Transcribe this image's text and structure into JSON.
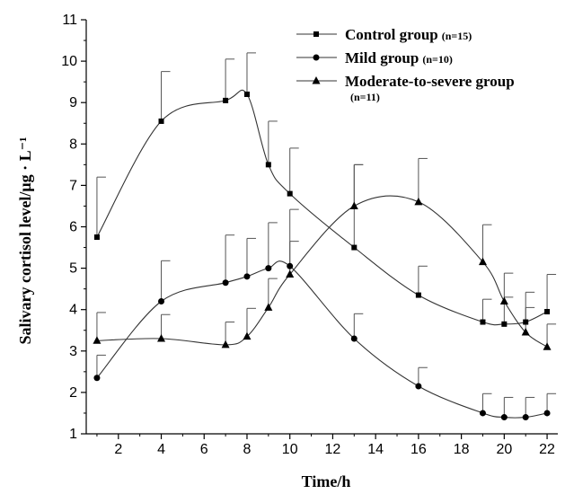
{
  "chart_data": {
    "type": "line",
    "title": "",
    "xlabel": "Time/h",
    "ylabel": "Salivary cortisol level/μg · L⁻¹",
    "xlim": [
      0.5,
      22.5
    ],
    "ylim": [
      1,
      11
    ],
    "x_ticks": [
      2,
      4,
      6,
      8,
      10,
      12,
      14,
      16,
      18,
      20,
      22
    ],
    "y_ticks": [
      1,
      2,
      3,
      4,
      5,
      6,
      7,
      8,
      9,
      10,
      11
    ],
    "grid": false,
    "legend_position": "top-right",
    "x": [
      1,
      4,
      7,
      8,
      9,
      10,
      13,
      16,
      19,
      20,
      21,
      22
    ],
    "series": [
      {
        "name": "Control group",
        "n_label": "(n=15)",
        "marker": "square",
        "values": [
          5.75,
          8.55,
          9.05,
          9.2,
          7.5,
          6.8,
          5.5,
          4.35,
          3.7,
          3.65,
          3.7,
          3.95
        ],
        "error": [
          1.45,
          1.2,
          1.0,
          1.0,
          1.05,
          1.1,
          2.0,
          0.7,
          0.55,
          0.65,
          0.35,
          0.9
        ]
      },
      {
        "name": "Mild group",
        "n_label": "(n=10)",
        "marker": "circle",
        "values": [
          2.35,
          4.2,
          4.65,
          4.8,
          5.0,
          5.05,
          3.3,
          2.15,
          1.5,
          1.4,
          1.4,
          1.5
        ],
        "error": [
          0.55,
          0.98,
          1.15,
          0.92,
          1.1,
          1.37,
          0.6,
          0.45,
          0.47,
          0.48,
          0.48,
          0.47
        ]
      },
      {
        "name": "Moderate-to-severe group",
        "n_label": "(n=11)",
        "marker": "triangle",
        "values": [
          3.25,
          3.3,
          3.15,
          3.35,
          4.05,
          4.85,
          6.5,
          6.6,
          5.15,
          4.2,
          3.45,
          3.1
        ],
        "error": [
          0.68,
          0.58,
          0.55,
          0.68,
          0.7,
          0.8,
          1.0,
          1.05,
          0.9,
          0.68,
          0.97,
          0.55
        ]
      }
    ]
  }
}
